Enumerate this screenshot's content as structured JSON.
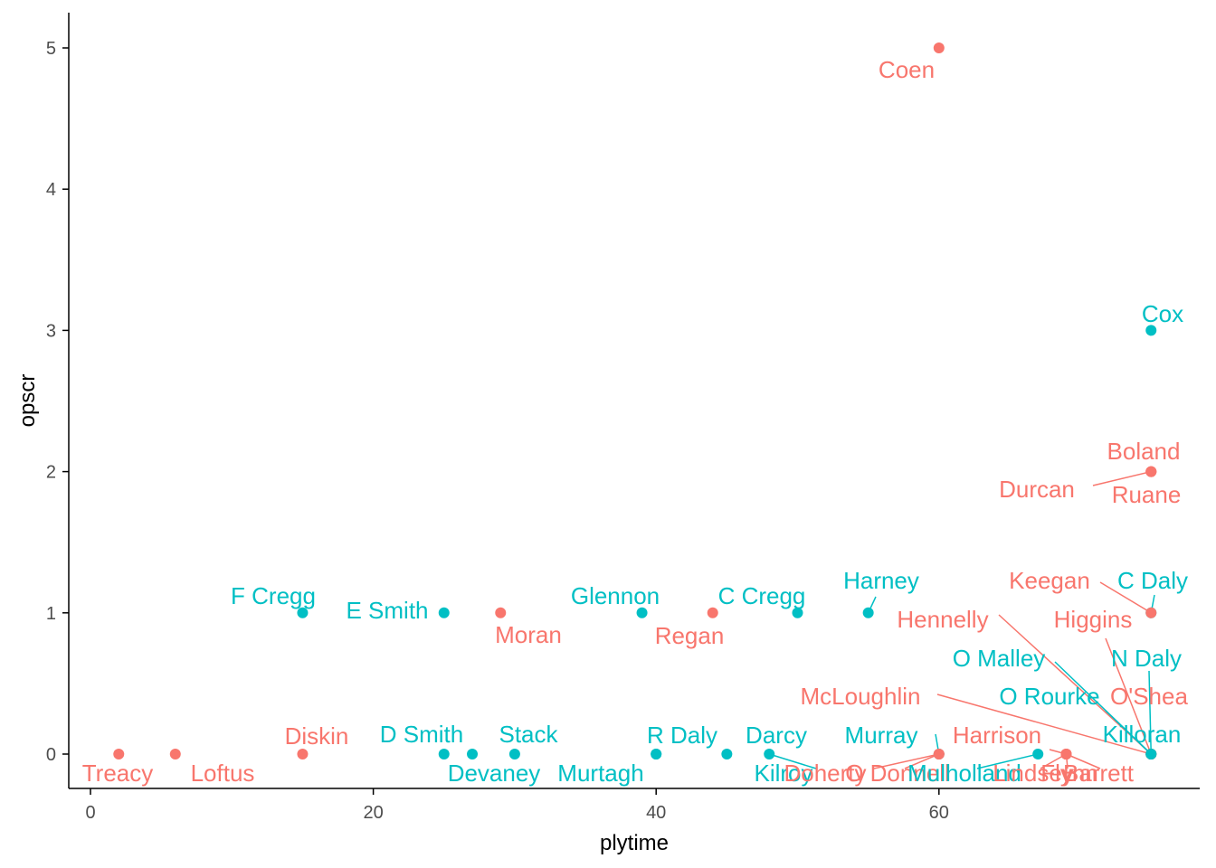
{
  "colors": {
    "group_a": "#F8766D",
    "group_b": "#00BFC4",
    "axis": "#000000",
    "tick_text": "#4d4d4d"
  },
  "chart_data": {
    "type": "scatter",
    "xlabel": "plytime",
    "ylabel": "opscr",
    "xlim": [
      -1,
      77
    ],
    "ylim": [
      -0.25,
      5.25
    ],
    "x_ticks": [
      0,
      20,
      40,
      60
    ],
    "y_ticks": [
      0,
      1,
      2,
      3,
      4,
      5
    ],
    "grid": false,
    "legend": "none",
    "points": [
      {
        "name": "Treacy",
        "x": 2,
        "y": 0,
        "group": "a"
      },
      {
        "name": "Loftus",
        "x": 6,
        "y": 0,
        "group": "a"
      },
      {
        "name": "Diskin",
        "x": 15,
        "y": 0,
        "group": "a"
      },
      {
        "name": "F Cregg",
        "x": 15,
        "y": 1,
        "group": "b"
      },
      {
        "name": "E Smith",
        "x": 25,
        "y": 1,
        "group": "b"
      },
      {
        "name": "D Smith",
        "x": 25,
        "y": 0,
        "group": "b"
      },
      {
        "name": "Devaney",
        "x": 27,
        "y": 0,
        "group": "b"
      },
      {
        "name": "Moran",
        "x": 29,
        "y": 1,
        "group": "a"
      },
      {
        "name": "Stack",
        "x": 30,
        "y": 0,
        "group": "b"
      },
      {
        "name": "Glennon",
        "x": 39,
        "y": 1,
        "group": "b"
      },
      {
        "name": "Murtagh",
        "x": 40,
        "y": 0,
        "group": "b"
      },
      {
        "name": "R Daly",
        "x": 40,
        "y": 0,
        "group": "b"
      },
      {
        "name": "Regan",
        "x": 44,
        "y": 1,
        "group": "a"
      },
      {
        "name": "Darcy",
        "x": 45,
        "y": 0,
        "group": "b"
      },
      {
        "name": "Kilroy",
        "x": 48,
        "y": 0,
        "group": "b"
      },
      {
        "name": "C Cregg",
        "x": 50,
        "y": 1,
        "group": "b"
      },
      {
        "name": "Harney",
        "x": 55,
        "y": 1,
        "group": "b"
      },
      {
        "name": "Coen",
        "x": 60,
        "y": 5,
        "group": "a"
      },
      {
        "name": "Murray",
        "x": 60,
        "y": 0,
        "group": "b"
      },
      {
        "name": "Doherty",
        "x": 60,
        "y": 0,
        "group": "a"
      },
      {
        "name": "O Donnell",
        "x": 60,
        "y": 0,
        "group": "a"
      },
      {
        "name": "Mulholland",
        "x": 67,
        "y": 0,
        "group": "b"
      },
      {
        "name": "Harrison",
        "x": 69,
        "y": 0,
        "group": "a"
      },
      {
        "name": "Lindsey",
        "x": 69,
        "y": 0,
        "group": "a"
      },
      {
        "name": "Flynn",
        "x": 69,
        "y": 0,
        "group": "a"
      },
      {
        "name": "Barrett",
        "x": 69,
        "y": 0,
        "group": "a"
      },
      {
        "name": "Cox",
        "x": 75,
        "y": 3,
        "group": "b"
      },
      {
        "name": "Boland",
        "x": 75,
        "y": 2,
        "group": "a"
      },
      {
        "name": "Durcan",
        "x": 75,
        "y": 2,
        "group": "a"
      },
      {
        "name": "Ruane",
        "x": 75,
        "y": 2,
        "group": "a"
      },
      {
        "name": "C Daly",
        "x": 75,
        "y": 1,
        "group": "b"
      },
      {
        "name": "Keegan",
        "x": 75,
        "y": 1,
        "group": "a"
      },
      {
        "name": "Higgins",
        "x": 75,
        "y": 0,
        "group": "a"
      },
      {
        "name": "Hennelly",
        "x": 75,
        "y": 0,
        "group": "a"
      },
      {
        "name": "O Malley",
        "x": 75,
        "y": 0,
        "group": "b"
      },
      {
        "name": "N Daly",
        "x": 75,
        "y": 0,
        "group": "b"
      },
      {
        "name": "McLoughlin",
        "x": 75,
        "y": 0,
        "group": "a"
      },
      {
        "name": "O Rourke",
        "x": 75,
        "y": 0,
        "group": "b"
      },
      {
        "name": "O'Shea",
        "x": 75,
        "y": 0,
        "group": "a"
      },
      {
        "name": "Killoran",
        "x": 75,
        "y": 0,
        "group": "b"
      }
    ]
  }
}
